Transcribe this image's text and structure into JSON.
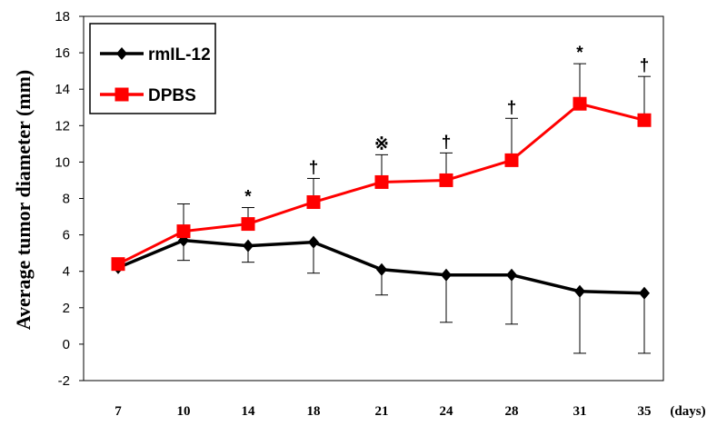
{
  "chart_data": {
    "type": "line",
    "xlabel": "",
    "x_unit": "(days)",
    "ylabel": "Average tumor diameter (mm)",
    "ylim": [
      -2,
      18
    ],
    "yticks": [
      -2,
      0,
      2,
      4,
      6,
      8,
      10,
      12,
      14,
      16,
      18
    ],
    "categories": [
      "7",
      "10",
      "14",
      "18",
      "21",
      "24",
      "28",
      "31",
      "35"
    ],
    "legend_position": "top-left",
    "grid": false,
    "series": [
      {
        "name": "rmIL-12",
        "color": "#000000",
        "marker": "diamond",
        "values": [
          4.2,
          5.7,
          5.4,
          5.6,
          4.1,
          3.8,
          3.8,
          2.9,
          2.8
        ],
        "error_upper": [
          0,
          0,
          0,
          0,
          0,
          0,
          0,
          0,
          0
        ],
        "error_lower": [
          0.1,
          1.1,
          0.9,
          1.7,
          1.4,
          2.6,
          2.7,
          3.4,
          3.3
        ]
      },
      {
        "name": "DPBS",
        "color": "#ff0000",
        "marker": "square",
        "values": [
          4.4,
          6.2,
          6.6,
          7.8,
          8.9,
          9.0,
          10.1,
          13.2,
          12.3
        ],
        "error_upper": [
          0,
          1.5,
          0.9,
          1.3,
          1.5,
          1.5,
          2.3,
          2.2,
          2.4
        ],
        "error_lower": [
          0,
          0,
          0,
          0,
          0,
          0,
          0,
          0,
          0
        ]
      }
    ],
    "annotations": [
      "",
      "",
      "*",
      "†",
      "※",
      "†",
      "†",
      "*",
      "†"
    ]
  }
}
